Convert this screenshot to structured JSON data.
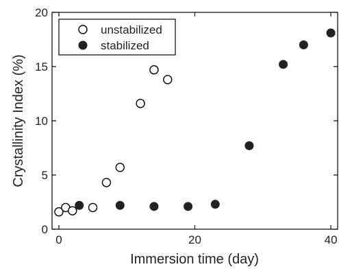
{
  "chart_data": {
    "type": "scatter",
    "title": "",
    "xlabel": "Immersion time (day)",
    "ylabel": "Crystallinity Index (%)",
    "xlim": [
      -1,
      41
    ],
    "ylim": [
      0,
      20
    ],
    "xticks": [
      0,
      20,
      40
    ],
    "yticks": [
      0,
      5,
      10,
      15,
      20
    ],
    "grid": false,
    "legend_position": "top-left",
    "series": [
      {
        "name": "unstabilized",
        "marker": "open-circle",
        "color": "#000000",
        "x": [
          0,
          1,
          2,
          5,
          7,
          9,
          12,
          14,
          16
        ],
        "y": [
          1.6,
          2.0,
          1.7,
          2.0,
          4.3,
          5.7,
          11.6,
          14.7,
          13.8
        ]
      },
      {
        "name": "stabilized",
        "marker": "filled-circle",
        "color": "#000000",
        "x": [
          3,
          9,
          14,
          19,
          23,
          28,
          33,
          36,
          40
        ],
        "y": [
          2.2,
          2.2,
          2.1,
          2.1,
          2.3,
          7.7,
          15.2,
          17.0,
          18.1
        ]
      }
    ]
  }
}
